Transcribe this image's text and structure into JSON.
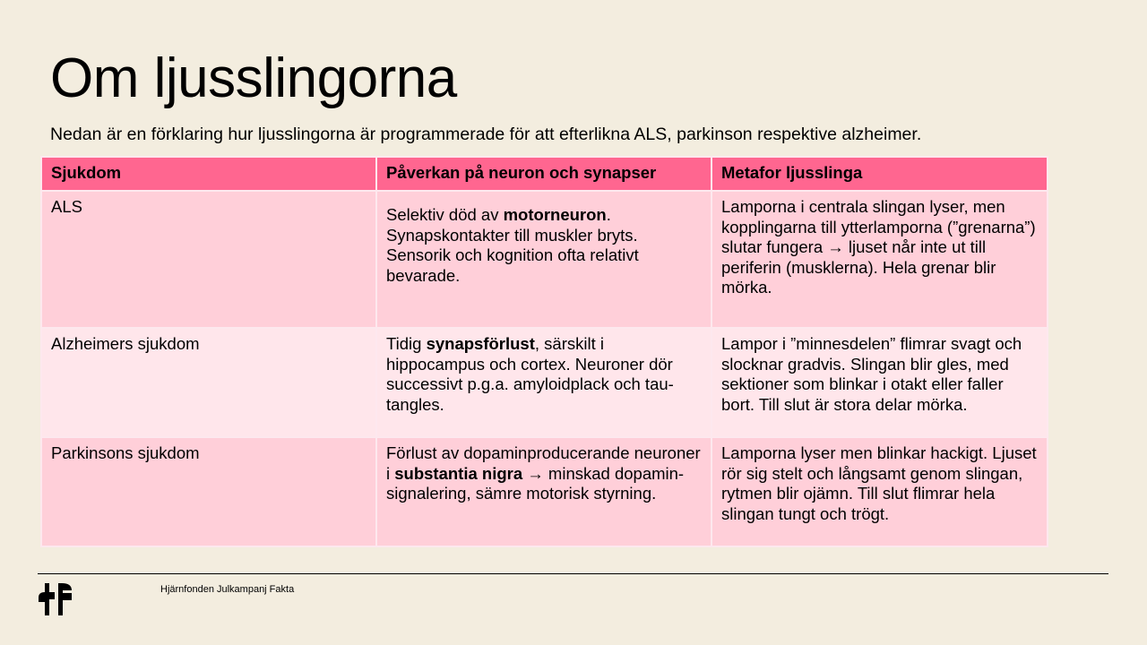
{
  "slide": {
    "title": "Om ljusslingorna",
    "subtitle": "Nedan är en förklaring hur ljusslingorna är programmerade för att efterlikna ALS, parkinson respektive alzheimer."
  },
  "table": {
    "headers": [
      "Sjukdom",
      "Påverkan på neuron och synapser",
      "Metafor ljusslinga"
    ],
    "rows": [
      {
        "disease": "ALS",
        "effect": [
          {
            "text": "Selektiv död av ",
            "bold": false
          },
          {
            "text": "motorneuron",
            "bold": true
          },
          {
            "text": ". Synapskontakter till muskler bryts. Sensorik och kognition ofta relativt bevarade.",
            "bold": false
          }
        ],
        "metaphor": "Lamporna i centrala slingan lyser, men kopplingarna till ytterlamporna (”grenarna”) slutar fungera → ljuset når inte ut till periferin (musklerna). Hela grenar blir mörka."
      },
      {
        "disease": "Alzheimers sjukdom",
        "effect": [
          {
            "text": "Tidig ",
            "bold": false
          },
          {
            "text": "synapsförlust",
            "bold": true
          },
          {
            "text": ", särskilt i hippocampus och cortex. Neuroner dör successivt p.g.a. amyloidplack och tau-tangles.",
            "bold": false
          }
        ],
        "metaphor": "Lampor i ”minnesdelen” flimrar svagt och slocknar gradvis. Slingan blir gles, med sektioner som blinkar i otakt eller faller bort. Till slut är stora delar mörka."
      },
      {
        "disease": "Parkinsons sjukdom",
        "effect": [
          {
            "text": "Förlust av dopaminproducerande neuroner i ",
            "bold": false
          },
          {
            "text": "substantia nigra",
            "bold": true
          },
          {
            "text": " → minskad dopamin-signalering, sämre motorisk styrning.",
            "bold": false
          }
        ],
        "metaphor": "Lamporna lyser men blinkar hackigt. Ljuset rör sig stelt och långsamt genom slingan, rytmen blir ojämn. Till slut flimrar hela slingan tungt och trögt."
      }
    ]
  },
  "footer": {
    "text": "Hjärnfonden Julkampanj Fakta",
    "logo": "Hjärnfonden HF logo"
  },
  "colors": {
    "background": "#f3eddf",
    "header": "#ff6690",
    "row_dark": "#ffcfd9",
    "row_light": "#ffe6eb"
  }
}
